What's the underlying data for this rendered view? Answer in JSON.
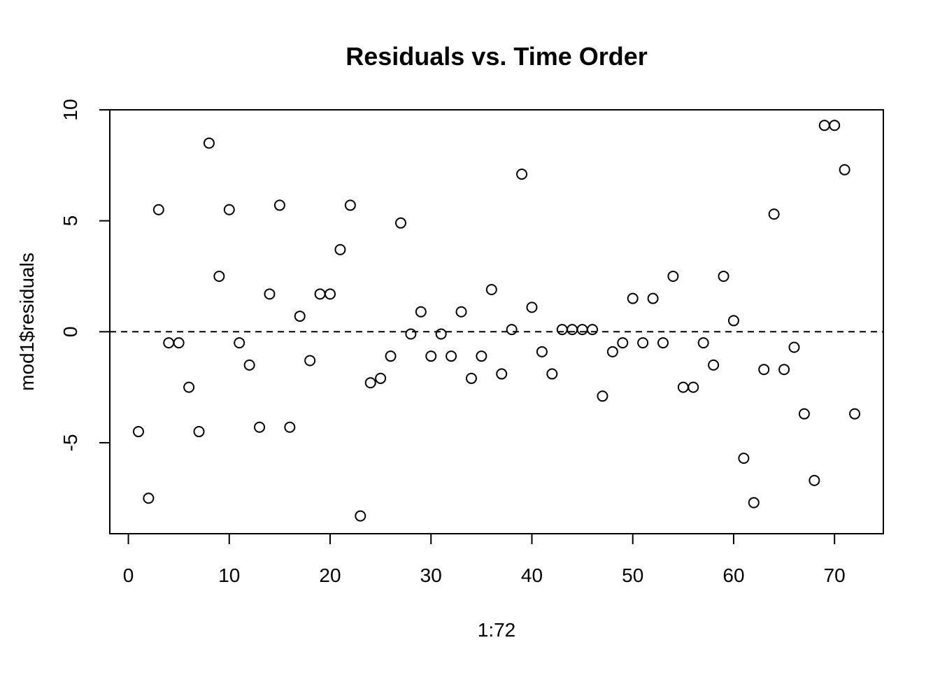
{
  "chart_data": {
    "type": "scatter",
    "title": "Residuals vs. Time Order",
    "xlabel": "1:72",
    "ylabel": "mod1$residuals",
    "xlim": [
      -1.84,
      74.84
    ],
    "ylim": [
      -9.1,
      10.0
    ],
    "x_ticks": [
      0,
      10,
      20,
      30,
      40,
      50,
      60,
      70
    ],
    "y_ticks": [
      -5,
      0,
      5,
      10
    ],
    "x_tick_labels": [
      "0",
      "10",
      "20",
      "30",
      "40",
      "50",
      "60",
      "70"
    ],
    "y_tick_labels": [
      "-5",
      "0",
      "5",
      "10"
    ],
    "reference_line": {
      "y": 0,
      "style": "dashed"
    },
    "marker": "open-circle",
    "grid": false,
    "x": [
      1,
      2,
      3,
      4,
      5,
      6,
      7,
      8,
      9,
      10,
      11,
      12,
      13,
      14,
      15,
      16,
      17,
      18,
      19,
      20,
      21,
      22,
      23,
      24,
      25,
      26,
      27,
      28,
      29,
      30,
      31,
      32,
      33,
      34,
      35,
      36,
      37,
      38,
      39,
      40,
      41,
      42,
      43,
      44,
      45,
      46,
      47,
      48,
      49,
      50,
      51,
      52,
      53,
      54,
      55,
      56,
      57,
      58,
      59,
      60,
      61,
      62,
      63,
      64,
      65,
      66,
      67,
      68,
      69,
      70,
      71,
      72
    ],
    "y": [
      -4.5,
      -7.5,
      5.5,
      -0.5,
      -0.5,
      -2.5,
      -4.5,
      8.5,
      2.5,
      5.5,
      -0.5,
      -1.5,
      -4.3,
      1.7,
      5.7,
      -4.3,
      0.7,
      -1.3,
      1.7,
      1.7,
      3.7,
      5.7,
      -8.3,
      -2.3,
      -2.1,
      -1.1,
      4.9,
      -0.1,
      0.9,
      -1.1,
      -0.1,
      -1.1,
      0.9,
      -2.1,
      -1.1,
      1.9,
      -1.9,
      0.1,
      7.1,
      1.1,
      -0.9,
      -1.9,
      0.1,
      0.1,
      0.1,
      0.1,
      -2.9,
      -0.9,
      -0.5,
      1.5,
      -0.5,
      1.5,
      -0.5,
      2.5,
      -2.5,
      -2.5,
      -0.5,
      -1.5,
      2.5,
      0.5,
      -5.7,
      -7.7,
      -1.7,
      5.3,
      -1.7,
      -0.7,
      -3.7,
      -6.7,
      9.3,
      9.3,
      7.3,
      -3.7
    ]
  }
}
